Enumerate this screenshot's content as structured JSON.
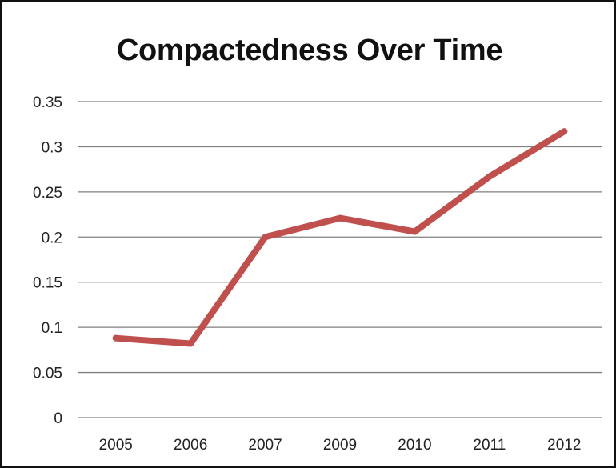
{
  "chart_data": {
    "type": "line",
    "title": "Compactedness Over Time",
    "xlabel": "",
    "ylabel": "",
    "categories": [
      "2005",
      "2006",
      "2007",
      "2009",
      "2010",
      "2011",
      "2012"
    ],
    "series": [
      {
        "values": [
          0.088,
          0.082,
          0.2,
          0.221,
          0.206,
          0.267,
          0.317
        ]
      }
    ],
    "ylim": [
      0,
      0.35
    ],
    "yticks": [
      "0",
      "0.05",
      "0.1",
      "0.15",
      "0.2",
      "0.25",
      "0.3",
      "0.35"
    ],
    "grid": true,
    "legend": "none",
    "colors": {
      "line": "#c0504d",
      "grid": "#7f7f7f"
    }
  }
}
